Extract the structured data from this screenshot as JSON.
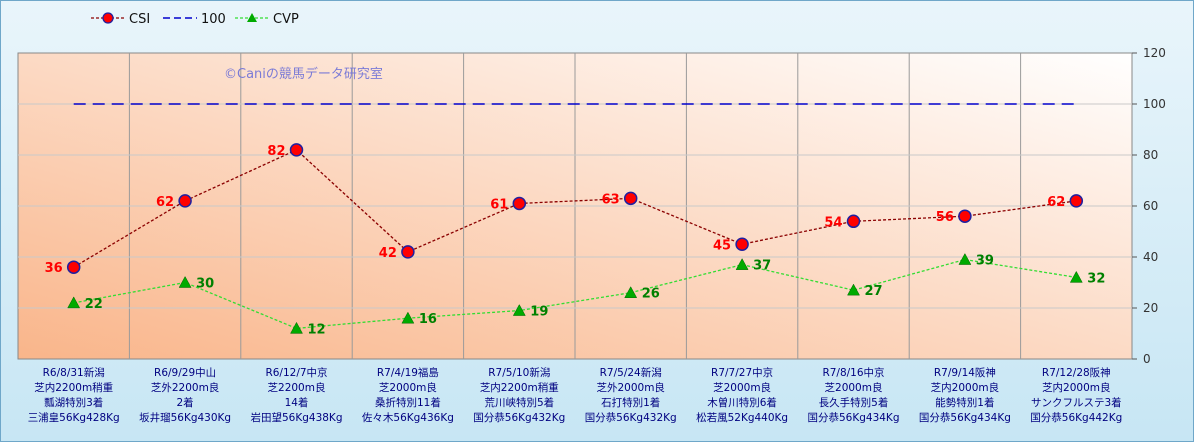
{
  "chart_data": {
    "type": "line",
    "watermark": "©Caniの競馬データ研究室",
    "y_ticks": [
      "0",
      "20",
      "40",
      "60",
      "80",
      "100",
      "120"
    ],
    "ylim": [
      0,
      120
    ],
    "grid": true,
    "legend_position": "top-left",
    "categories": [
      [
        "R6/8/31新潟",
        "芝内2200m稍重",
        "瓢湖特別3着",
        "三浦皇56Kg428Kg"
      ],
      [
        "R6/9/29中山",
        "芝外2200m良",
        "2着",
        "坂井瑠56Kg430Kg"
      ],
      [
        "R6/12/7中京",
        "芝2200m良",
        "14着",
        "岩田望56Kg438Kg"
      ],
      [
        "R7/4/19福島",
        "芝2000m良",
        "桑折特別11着",
        "佐々木56Kg436Kg"
      ],
      [
        "R7/5/10新潟",
        "芝内2200m稍重",
        "荒川峡特別5着",
        "国分恭56Kg432Kg"
      ],
      [
        "R7/5/24新潟",
        "芝外2000m良",
        "石打特別1着",
        "国分恭56Kg432Kg"
      ],
      [
        "R7/7/27中京",
        "芝2000m良",
        "木曽川特別6着",
        "松若風52Kg440Kg"
      ],
      [
        "R7/8/16中京",
        "芝2000m良",
        "長久手特別5着",
        "国分恭56Kg434Kg"
      ],
      [
        "R7/9/14阪神",
        "芝内2000m良",
        "能勢特別1着",
        "国分恭56Kg434Kg"
      ],
      [
        "R7/12/28阪神",
        "芝内2000m良",
        "サンクフルステ3着",
        "国分恭56Kg442Kg"
      ]
    ],
    "series": [
      {
        "name": "CSI",
        "values": [
          36,
          62,
          82,
          42,
          61,
          63,
          45,
          54,
          56,
          62
        ],
        "color": "#8b0000",
        "marker_color": "#ff0000",
        "marker": "circle",
        "label_color": "#ff0000"
      },
      {
        "name": "100",
        "values": [
          100,
          100,
          100,
          100,
          100,
          100,
          100,
          100,
          100,
          100
        ],
        "color": "#0000cc",
        "marker": "none"
      },
      {
        "name": "CVP",
        "values": [
          22,
          30,
          12,
          16,
          19,
          26,
          37,
          27,
          39,
          32
        ],
        "color": "#33dd33",
        "marker_color": "#00aa00",
        "marker": "triangle",
        "label_color": "#008000"
      }
    ],
    "colors": {
      "plot_gradient_start": "#f9b58a",
      "plot_gradient_end": "#ffffff",
      "category_text": "#000080"
    }
  }
}
